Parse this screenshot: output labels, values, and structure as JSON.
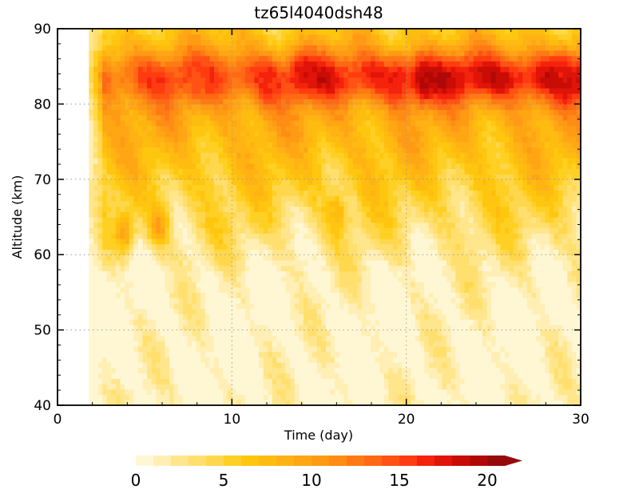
{
  "chart_data": {
    "type": "heatmap",
    "title": "tz65l4040dsh48",
    "xlabel": "Time (day)",
    "ylabel": "Altitude (km)",
    "xlim": [
      0,
      30
    ],
    "ylim": [
      40,
      90
    ],
    "x_ticks": [
      0,
      10,
      20,
      30
    ],
    "y_ticks": [
      40,
      50,
      60,
      70,
      80,
      90
    ],
    "grid": "dotted, at major ticks",
    "data_start_day": 1.8,
    "colorbar": {
      "orientation": "horizontal",
      "placement": "bottom",
      "levels_min": 0,
      "levels_max": 21,
      "level_step": 1,
      "labels": [
        "0",
        "5",
        "10",
        "15",
        "20"
      ],
      "label_values": [
        0,
        5,
        10,
        15,
        20
      ],
      "extend": "max",
      "colors": [
        "#fff7d4",
        "#ffefb4",
        "#ffe68c",
        "#ffdf6e",
        "#ffd74c",
        "#ffd024",
        "#ffc610",
        "#ffbc10",
        "#ffb214",
        "#ffa614",
        "#ff9a14",
        "#ff8c14",
        "#ff7a14",
        "#ff6814",
        "#ff5214",
        "#ff3c10",
        "#f5220c",
        "#e01408",
        "#c80c06",
        "#b00808",
        "#960a0a"
      ]
    },
    "features": [
      {
        "day": 5.8,
        "alt": 64.0,
        "value": 10.5
      },
      {
        "day": 3.8,
        "alt": 63.0,
        "value": 10.0
      },
      {
        "day": 1.8,
        "alt": 64.0,
        "value": 6.0
      },
      {
        "day": 14.0,
        "alt": 84.0,
        "value": 18.0
      },
      {
        "day": 21.0,
        "alt": 83.0,
        "value": 19.5
      },
      {
        "day": 19.5,
        "alt": 83.0,
        "value": 17.0
      },
      {
        "day": 29.0,
        "alt": 84.0,
        "value": 17.0
      },
      {
        "day": 12.0,
        "alt": 82.5,
        "value": 16.0
      },
      {
        "day": 16.0,
        "alt": 65.5,
        "value": 8.0
      },
      {
        "day": 8.0,
        "alt": 83.0,
        "value": 14.5
      }
    ]
  }
}
